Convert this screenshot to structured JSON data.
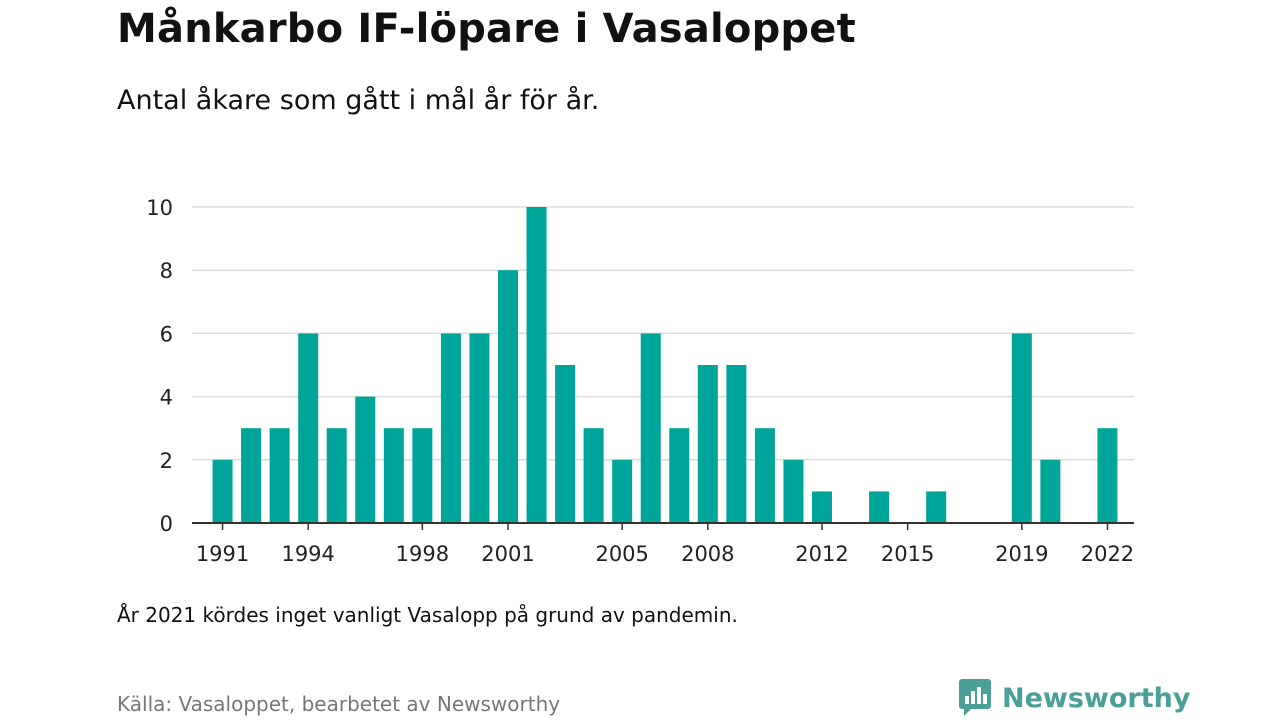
{
  "title": "Månkarbo IF-löpare i Vasaloppet",
  "subtitle": "Antal åkare som gått i mål år för år.",
  "note": "År 2021 kördes inget vanligt Vasalopp på grund av pandemin.",
  "source": "Källa: Vasaloppet, bearbetet av Newsworthy",
  "brand": {
    "name": "Newsworthy",
    "icon": "newsworthy-logo-icon",
    "color": "#4a9f98"
  },
  "chart_data": {
    "type": "bar",
    "color": "#00a59a",
    "x": [
      1991,
      1992,
      1993,
      1994,
      1995,
      1996,
      1997,
      1998,
      1999,
      2000,
      2001,
      2002,
      2003,
      2004,
      2005,
      2006,
      2007,
      2008,
      2009,
      2010,
      2011,
      2012,
      2013,
      2014,
      2015,
      2016,
      2017,
      2018,
      2019,
      2020,
      2021,
      2022
    ],
    "values": [
      2,
      3,
      3,
      6,
      3,
      4,
      3,
      3,
      6,
      6,
      8,
      10,
      5,
      3,
      2,
      6,
      3,
      5,
      5,
      3,
      2,
      1,
      0,
      1,
      0,
      1,
      0,
      0,
      6,
      2,
      0,
      3
    ],
    "x_ticks": [
      1991,
      1994,
      1998,
      2001,
      2005,
      2008,
      2012,
      2015,
      2019,
      2022
    ],
    "y_ticks": [
      0,
      2,
      4,
      6,
      8,
      10
    ],
    "ylim": [
      0,
      10
    ],
    "xlim": [
      1990,
      2023
    ],
    "grid": true,
    "xlabel": "",
    "ylabel": ""
  }
}
